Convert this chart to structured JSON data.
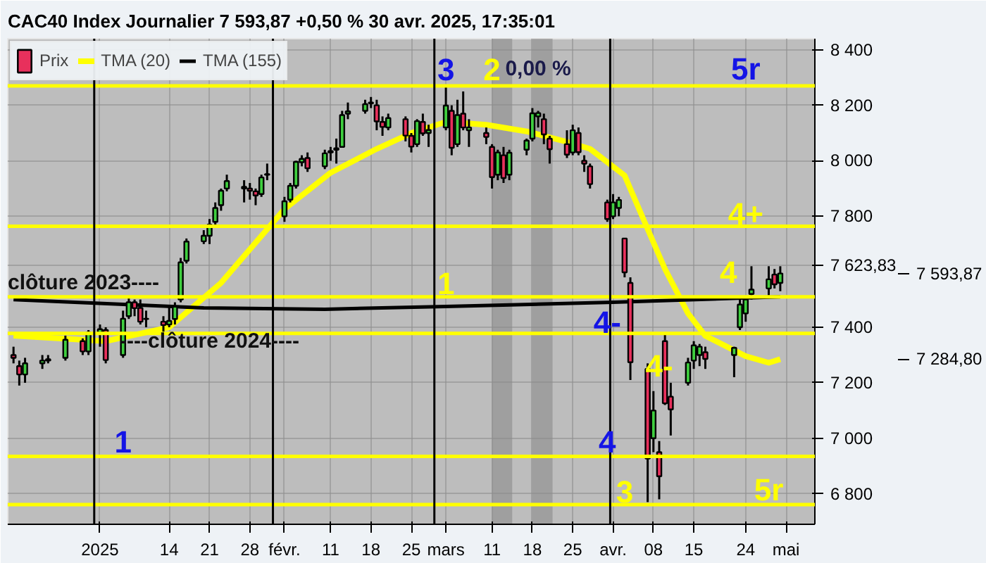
{
  "chart_data": {
    "type": "candlestick",
    "title": "CAC40 Index Journalier 7 593,87 +0,50 % 30 avr. 2025, 17:35:01",
    "legend": "top left",
    "grid": true,
    "x": [
      "2024-12-18",
      "2024-12-19",
      "2024-12-20",
      "2024-12-23",
      "2024-12-24",
      "2024-12-27",
      "2024-12-30",
      "2024-12-31",
      "2025-01-02",
      "2025-01-03",
      "2025-01-06",
      "2025-01-07",
      "2025-01-08",
      "2025-01-09",
      "2025-01-10",
      "2025-01-13",
      "2025-01-14",
      "2025-01-15",
      "2025-01-16",
      "2025-01-17",
      "2025-01-20",
      "2025-01-21",
      "2025-01-22",
      "2025-01-23",
      "2025-01-24",
      "2025-01-27",
      "2025-01-28",
      "2025-01-29",
      "2025-01-30",
      "2025-01-31",
      "2025-02-03",
      "2025-02-04",
      "2025-02-05",
      "2025-02-06",
      "2025-02-07",
      "2025-02-10",
      "2025-02-11",
      "2025-02-12",
      "2025-02-13",
      "2025-02-14",
      "2025-02-17",
      "2025-02-18",
      "2025-02-19",
      "2025-02-20",
      "2025-02-21",
      "2025-02-24",
      "2025-02-25",
      "2025-02-26",
      "2025-02-27",
      "2025-02-28",
      "2025-03-03",
      "2025-03-04",
      "2025-03-05",
      "2025-03-06",
      "2025-03-07",
      "2025-03-10",
      "2025-03-11",
      "2025-03-12",
      "2025-03-13",
      "2025-03-14",
      "2025-03-17",
      "2025-03-18",
      "2025-03-19",
      "2025-03-20",
      "2025-03-21",
      "2025-03-24",
      "2025-03-25",
      "2025-03-26",
      "2025-03-27",
      "2025-03-28",
      "2025-03-31",
      "2025-04-01",
      "2025-04-02",
      "2025-04-03",
      "2025-04-04",
      "2025-04-07",
      "2025-04-08",
      "2025-04-09",
      "2025-04-10",
      "2025-04-11",
      "2025-04-14",
      "2025-04-15",
      "2025-04-16",
      "2025-04-17",
      "2025-04-22",
      "2025-04-23",
      "2025-04-24",
      "2025-04-25",
      "2025-04-28",
      "2025-04-29",
      "2025-04-30"
    ],
    "series": [
      {
        "name": "Prix",
        "colors": [
          "#e8305c",
          "#e8305c",
          "#3fcf3f",
          "#3fcf3f",
          "#3fcf3f",
          "#3fcf3f",
          "#e8305c",
          "#3fcf3f",
          "#3fcf3f",
          "#e8305c",
          "#3fcf3f",
          "#3fcf3f",
          "#e8305c",
          "#e8305c",
          "#3fcf3f",
          "#e8305c",
          "#3fcf3f",
          "#3fcf3f",
          "#3fcf3f",
          "#3fcf3f",
          "#3fcf3f",
          "#3fcf3f",
          "#3fcf3f",
          "#3fcf3f",
          "#3fcf3f",
          "#3fcf3f",
          "#e8305c",
          "#e8305c",
          "#3fcf3f",
          "#3fcf3f",
          "#3fcf3f",
          "#3fcf3f",
          "#3fcf3f",
          "#3fcf3f",
          "#e8305c",
          "#3fcf3f",
          "#3fcf3f",
          "#3fcf3f",
          "#3fcf3f",
          "#3fcf3f",
          "#3fcf3f",
          "#e8305c",
          "#e8305c",
          "#e8305c",
          "#3fcf3f",
          "#e8305c",
          "#e8305c",
          "#3fcf3f",
          "#e8305c",
          "#3fcf3f",
          "#3fcf3f",
          "#e8305c",
          "#3fcf3f",
          "#e8305c",
          "#3fcf3f",
          "#e8305c",
          "#e8305c",
          "#3fcf3f",
          "#e8305c",
          "#3fcf3f",
          "#3fcf3f",
          "#3fcf3f",
          "#3fcf3f",
          "#e8305c",
          "#e8305c",
          "#e8305c",
          "#3fcf3f",
          "#e8305c",
          "#e8305c",
          "#e8305c",
          "#e8305c",
          "#3fcf3f",
          "#3fcf3f",
          "#e8305c",
          "#e8305c",
          "#e8305c",
          "#3fcf3f",
          "#e8305c",
          "#e8305c",
          "#e8305c",
          "#3fcf3f",
          "#3fcf3f",
          "#3fcf3f",
          "#e8305c",
          "#3fcf3f",
          "#3fcf3f",
          "#3fcf3f",
          "#3fcf3f",
          "#3fcf3f",
          "#e8305c",
          "#3fcf3f"
        ],
        "ohlc": [
          [
            7300,
            7330,
            7270,
            7290
          ],
          [
            7260,
            7280,
            7190,
            7230
          ],
          [
            7230,
            7290,
            7200,
            7270
          ],
          [
            7270,
            7300,
            7250,
            7280
          ],
          [
            7280,
            7300,
            7270,
            7285
          ],
          [
            7290,
            7370,
            7280,
            7355
          ],
          [
            7350,
            7360,
            7300,
            7313
          ],
          [
            7313,
            7390,
            7300,
            7381
          ],
          [
            7380,
            7410,
            7330,
            7393
          ],
          [
            7390,
            7400,
            7270,
            7282
          ],
          [
            7300,
            7460,
            7290,
            7431
          ],
          [
            7440,
            7510,
            7430,
            7490
          ],
          [
            7490,
            7500,
            7440,
            7469
          ],
          [
            7470,
            7500,
            7410,
            7420
          ],
          [
            7430,
            7460,
            7400,
            7431
          ],
          [
            7420,
            7440,
            7380,
            7408
          ],
          [
            7410,
            7480,
            7400,
            7423
          ],
          [
            7430,
            7490,
            7410,
            7474
          ],
          [
            7500,
            7650,
            7490,
            7634
          ],
          [
            7640,
            7720,
            7630,
            7709
          ],
          [
            7710,
            7750,
            7700,
            7730
          ],
          [
            7730,
            7790,
            7700,
            7770
          ],
          [
            7780,
            7850,
            7760,
            7830
          ],
          [
            7840,
            7900,
            7820,
            7892
          ],
          [
            7900,
            7950,
            7890,
            7927
          ],
          [
            7900,
            7930,
            7850,
            7906
          ],
          [
            7900,
            7920,
            7860,
            7892
          ],
          [
            7890,
            7900,
            7840,
            7875
          ],
          [
            7880,
            7950,
            7870,
            7940
          ],
          [
            7950,
            7990,
            7930,
            7950
          ],
          [
            7800,
            7870,
            7780,
            7854
          ],
          [
            7860,
            7920,
            7850,
            7910
          ],
          [
            7910,
            8000,
            7900,
            7996
          ],
          [
            7995,
            8020,
            7980,
            8007
          ],
          [
            8010,
            8030,
            7960,
            7973
          ],
          [
            7980,
            8040,
            7970,
            8027
          ],
          [
            8030,
            8050,
            8000,
            8035
          ],
          [
            8040,
            8080,
            7990,
            8045
          ],
          [
            8050,
            8180,
            8050,
            8165
          ],
          [
            8170,
            8210,
            8150,
            8178
          ],
          [
            8180,
            8220,
            8170,
            8204
          ],
          [
            8210,
            8230,
            8190,
            8207
          ],
          [
            8200,
            8220,
            8110,
            8142
          ],
          [
            8140,
            8160,
            8090,
            8122
          ],
          [
            8120,
            8170,
            8110,
            8154
          ],
          [
            8150,
            8160,
            8070,
            8091
          ],
          [
            8090,
            8100,
            8030,
            8051
          ],
          [
            8060,
            8150,
            8050,
            8143
          ],
          [
            8140,
            8170,
            8090,
            8099
          ],
          [
            8100,
            8130,
            8050,
            8111
          ],
          [
            8120,
            8270,
            8110,
            8199
          ],
          [
            8180,
            8200,
            8020,
            8047
          ],
          [
            8060,
            8220,
            8050,
            8165
          ],
          [
            8170,
            8250,
            8110,
            8120
          ],
          [
            8110,
            8150,
            8050,
            8120
          ],
          [
            8100,
            8120,
            8060,
            8086
          ],
          [
            8050,
            8060,
            7900,
            7941
          ],
          [
            7950,
            8040,
            7930,
            8030
          ],
          [
            8020,
            8050,
            7920,
            7938
          ],
          [
            7950,
            8040,
            7930,
            8029
          ],
          [
            8040,
            8080,
            8020,
            8073
          ],
          [
            8080,
            8190,
            8070,
            8171
          ],
          [
            8160,
            8180,
            8120,
            8172
          ],
          [
            8150,
            8170,
            8060,
            8095
          ],
          [
            8080,
            8090,
            7990,
            8042
          ],
          [
            8060,
            8110,
            8010,
            8022
          ],
          [
            8030,
            8130,
            8020,
            8110
          ],
          [
            8100,
            8120,
            8020,
            8031
          ],
          [
            8000,
            8020,
            7960,
            7990
          ],
          [
            7980,
            7990,
            7900,
            7916
          ],
          [
            7850,
            7860,
            7780,
            7790
          ],
          [
            7800,
            7880,
            7790,
            7850
          ],
          [
            7830,
            7870,
            7800,
            7859
          ],
          [
            7720,
            7720,
            7580,
            7598
          ],
          [
            7560,
            7580,
            7210,
            7274
          ],
          [
            7250,
            7270,
            6770,
            6927
          ],
          [
            7000,
            7170,
            6950,
            7100
          ],
          [
            6950,
            6990,
            6780,
            6863
          ],
          [
            7350,
            7380,
            7120,
            7126
          ],
          [
            7150,
            7200,
            7010,
            7104
          ],
          [
            7200,
            7290,
            7190,
            7273
          ],
          [
            7280,
            7350,
            7250,
            7335
          ],
          [
            7300,
            7340,
            7260,
            7330
          ],
          [
            7310,
            7330,
            7250,
            7286
          ],
          [
            7300,
            7330,
            7220,
            7326
          ],
          [
            7400,
            7500,
            7390,
            7482
          ],
          [
            7450,
            7510,
            7420,
            7500
          ],
          [
            7520,
            7620,
            7500,
            7536
          ],
          [
            7540,
            7620,
            7510,
            7573
          ],
          [
            7590,
            7610,
            7540,
            7555
          ],
          [
            7560,
            7620,
            7530,
            7593.87
          ]
        ]
      },
      {
        "type": "line",
        "name": "TMA (20)",
        "color": "#ffff00",
        "x": [
          "2024-12-18",
          "2025-01-03",
          "2025-01-14",
          "2025-01-23",
          "2025-02-03",
          "2025-02-11",
          "2025-02-19",
          "2025-02-25",
          "2025-03-03",
          "2025-03-10",
          "2025-03-17",
          "2025-03-24",
          "2025-03-28",
          "2025-04-03",
          "2025-04-07",
          "2025-04-10",
          "2025-04-14",
          "2025-04-17",
          "2025-04-24",
          "2025-04-28",
          "2025-04-30"
        ],
        "values": [
          7370,
          7350,
          7400,
          7560,
          7826,
          7957,
          8043,
          8100,
          8140,
          8130,
          8106,
          8068,
          8043,
          7947,
          7754,
          7610,
          7450,
          7369,
          7296,
          7272,
          7285
        ]
      },
      {
        "type": "line",
        "name": "TMA (155)",
        "color": "#000000",
        "x": [
          "2024-12-18",
          "2025-01-20",
          "2025-02-10",
          "2025-03-03",
          "2025-04-01",
          "2025-04-30"
        ],
        "values": [
          7500,
          7470,
          7465,
          7475,
          7490,
          7510
        ]
      }
    ],
    "xlim": [
      "2024-12-17",
      "2025-05-06"
    ],
    "xticks": [
      {
        "value": "2025-01-02",
        "label": "2025"
      },
      {
        "value": "2025-01-14",
        "label": "14"
      },
      {
        "value": "2025-01-21",
        "label": "21"
      },
      {
        "value": "2025-01-28",
        "label": "28"
      },
      {
        "value": "2025-02-03",
        "label": "févr."
      },
      {
        "value": "2025-02-11",
        "label": "11"
      },
      {
        "value": "2025-02-18",
        "label": "18"
      },
      {
        "value": "2025-02-25",
        "label": "25"
      },
      {
        "value": "2025-03-03",
        "label": "mars"
      },
      {
        "value": "2025-03-11",
        "label": "11"
      },
      {
        "value": "2025-03-18",
        "label": "18"
      },
      {
        "value": "2025-03-25",
        "label": "25"
      },
      {
        "value": "2025-04-01",
        "label": "avr."
      },
      {
        "value": "2025-04-08",
        "label": "08"
      },
      {
        "value": "2025-04-15",
        "label": "15"
      },
      {
        "value": "2025-04-24",
        "label": "24"
      },
      {
        "value": "2025-05-01",
        "label": "mai"
      }
    ],
    "ylim": [
      6690,
      8440
    ],
    "yticks": [
      {
        "value": 6800,
        "label": "6 800"
      },
      {
        "value": 7000,
        "label": "7 000"
      },
      {
        "value": 7200,
        "label": "7 200"
      },
      {
        "value": 7400,
        "label": "7 400"
      },
      {
        "value": 7623.83,
        "label": "7 623,83"
      },
      {
        "value": 7800,
        "label": "7 800"
      },
      {
        "value": 8000,
        "label": "8 000"
      },
      {
        "value": 8200,
        "label": "8 200"
      },
      {
        "value": 8400,
        "label": "8 400"
      }
    ],
    "y2lim": [
      6690,
      8440
    ],
    "y2ticks": [
      {
        "value": 7284.8,
        "label": "7 284,80"
      },
      {
        "value": 7593.87,
        "label": "7 593,87"
      }
    ],
    "ref_lines": [
      {
        "axis": "y",
        "value": 8270,
        "color": "#ffff00"
      },
      {
        "axis": "y",
        "value": 7764,
        "color": "#ffff00"
      },
      {
        "axis": "y",
        "value": 7510,
        "color": "#ffff00"
      },
      {
        "axis": "y",
        "value": 7378,
        "color": "#ffff00"
      },
      {
        "axis": "y",
        "value": 6935,
        "color": "#ffff00"
      },
      {
        "axis": "y",
        "value": 6761,
        "color": "#ffff00"
      },
      {
        "axis": "x",
        "value": "2025-01-01",
        "color": "#000000"
      },
      {
        "axis": "x",
        "value": "2025-02-01",
        "color": "#000000"
      },
      {
        "axis": "x",
        "value": "2025-03-01",
        "color": "#000000"
      },
      {
        "axis": "x",
        "value": "2025-03-31T12:00",
        "color": "#000000"
      }
    ],
    "bands": [
      {
        "axis": "x",
        "from": "2025-03-11",
        "to": "2025-03-14",
        "color": "#8a8a8a"
      },
      {
        "axis": "x",
        "from": "2025-03-18",
        "to": "2025-03-21",
        "color": "#8a8a8a"
      }
    ],
    "annotations": [
      "3",
      "2",
      "0,00 %",
      "5r",
      "4+",
      "1",
      "4",
      "clôture 2023----",
      "----clôture 2024----",
      "4-",
      "4-",
      "1",
      "4",
      "3",
      "5r"
    ]
  }
}
